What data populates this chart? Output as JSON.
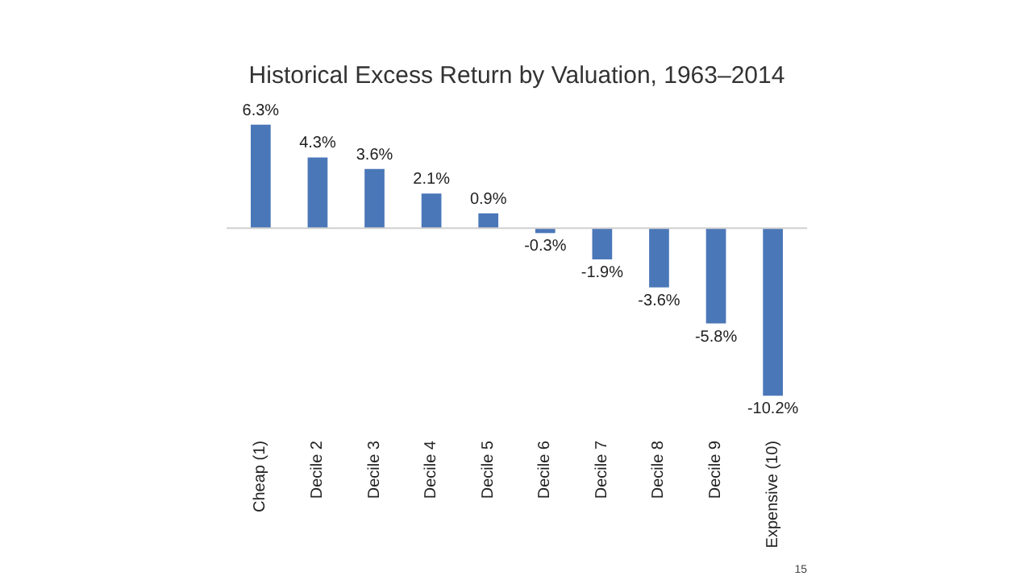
{
  "chart_data": {
    "type": "bar",
    "title": "Historical Excess Return by Valuation, 1963–2014",
    "categories": [
      "Cheap (1)",
      "Decile 2",
      "Decile 3",
      "Decile 4",
      "Decile 5",
      "Decile 6",
      "Decile 7",
      "Decile 8",
      "Decile 9",
      "Expensive (10)"
    ],
    "values": [
      6.3,
      4.3,
      3.6,
      2.1,
      0.9,
      -0.3,
      -1.9,
      -3.6,
      -5.8,
      -10.2
    ],
    "value_labels": [
      "6.3%",
      "4.3%",
      "3.6%",
      "2.1%",
      "0.9%",
      "-0.3%",
      "-1.9%",
      "-3.6%",
      "-5.8%",
      "-10.2%"
    ],
    "color": "#4a77b8",
    "grid": false,
    "annotations": [
      "15"
    ]
  }
}
